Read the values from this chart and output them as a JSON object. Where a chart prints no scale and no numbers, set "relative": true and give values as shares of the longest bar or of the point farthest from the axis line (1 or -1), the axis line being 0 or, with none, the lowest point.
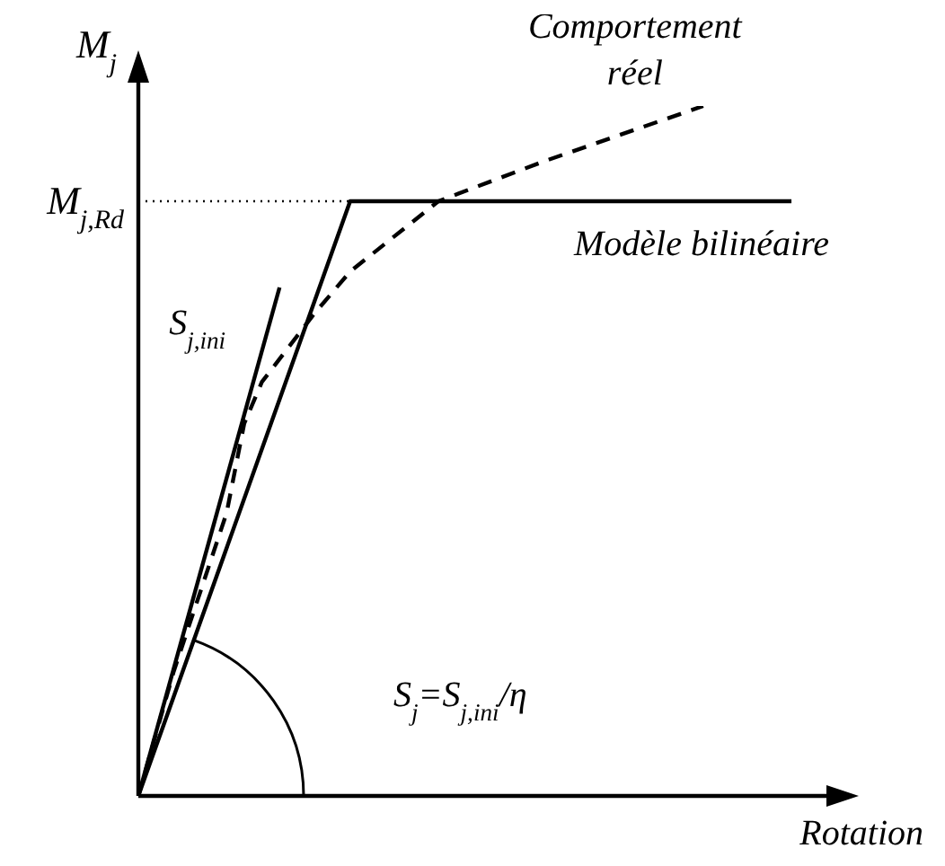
{
  "chart_data": {
    "type": "line",
    "relative": true,
    "xlabel": "Rotation",
    "ylabel": "M$_{j}$",
    "categories": [
      null,
      null,
      null,
      null,
      null,
      null,
      null,
      null,
      null,
      null,
      null,
      null,
      null,
      null,
      null,
      null,
      null,
      null,
      null,
      null,
      null,
      null,
      null,
      null,
      null,
      null,
      null,
      null,
      null,
      null,
      null,
      null,
      null,
      null,
      null,
      null,
      null,
      null,
      null,
      null,
      null
    ],
    "series": [
      {
        "name": "Modèle bilinéaire",
        "color": "#000000",
        "line_style": "solid",
        "values": [
          0,
          null,
          null,
          null,
          null,
          null,
          null,
          null,
          null,
          null,
          null,
          null,
          0.862,
          null,
          null,
          null,
          null,
          null,
          null,
          null,
          null,
          null,
          null,
          null,
          null,
          null,
          null,
          null,
          null,
          null,
          null,
          null,
          null,
          null,
          null,
          null,
          null,
          0.862,
          null,
          null,
          null
        ]
      },
      {
        "name": "S$_{j,ini}$",
        "color": "#000000",
        "line_style": "solid",
        "values": [
          0,
          null,
          null,
          null,
          null,
          null,
          null,
          null,
          0.737,
          null,
          null,
          null,
          null,
          null,
          null,
          null,
          null,
          null,
          null,
          null,
          null,
          null,
          null,
          null,
          null,
          null,
          null,
          null,
          null,
          null,
          null,
          null,
          null,
          null,
          null,
          null,
          null,
          null,
          null,
          null,
          null
        ]
      },
      {
        "name": "Comportement réel",
        "color": "#000000",
        "line_style": "dashed",
        "values": [
          0,
          null,
          0.18,
          null,
          null,
          0.41,
          0.54,
          0.6,
          null,
          null,
          0.7,
          null,
          0.76,
          null,
          null,
          null,
          null,
          0.862,
          null,
          null,
          null,
          null,
          null,
          0.92,
          null,
          null,
          null,
          null,
          null,
          null,
          null,
          null,
          1.0,
          null,
          null,
          null,
          null,
          null,
          null,
          null,
          null
        ]
      }
    ],
    "ref_lines": [
      {
        "axis": "y",
        "value": 0.862,
        "label": "M$_{j,Rd}$",
        "line_style": "dotted",
        "color": "#000000"
      }
    ],
    "annotations": [
      "S$_{j}$=S$_{j,ini}$/η"
    ]
  }
}
